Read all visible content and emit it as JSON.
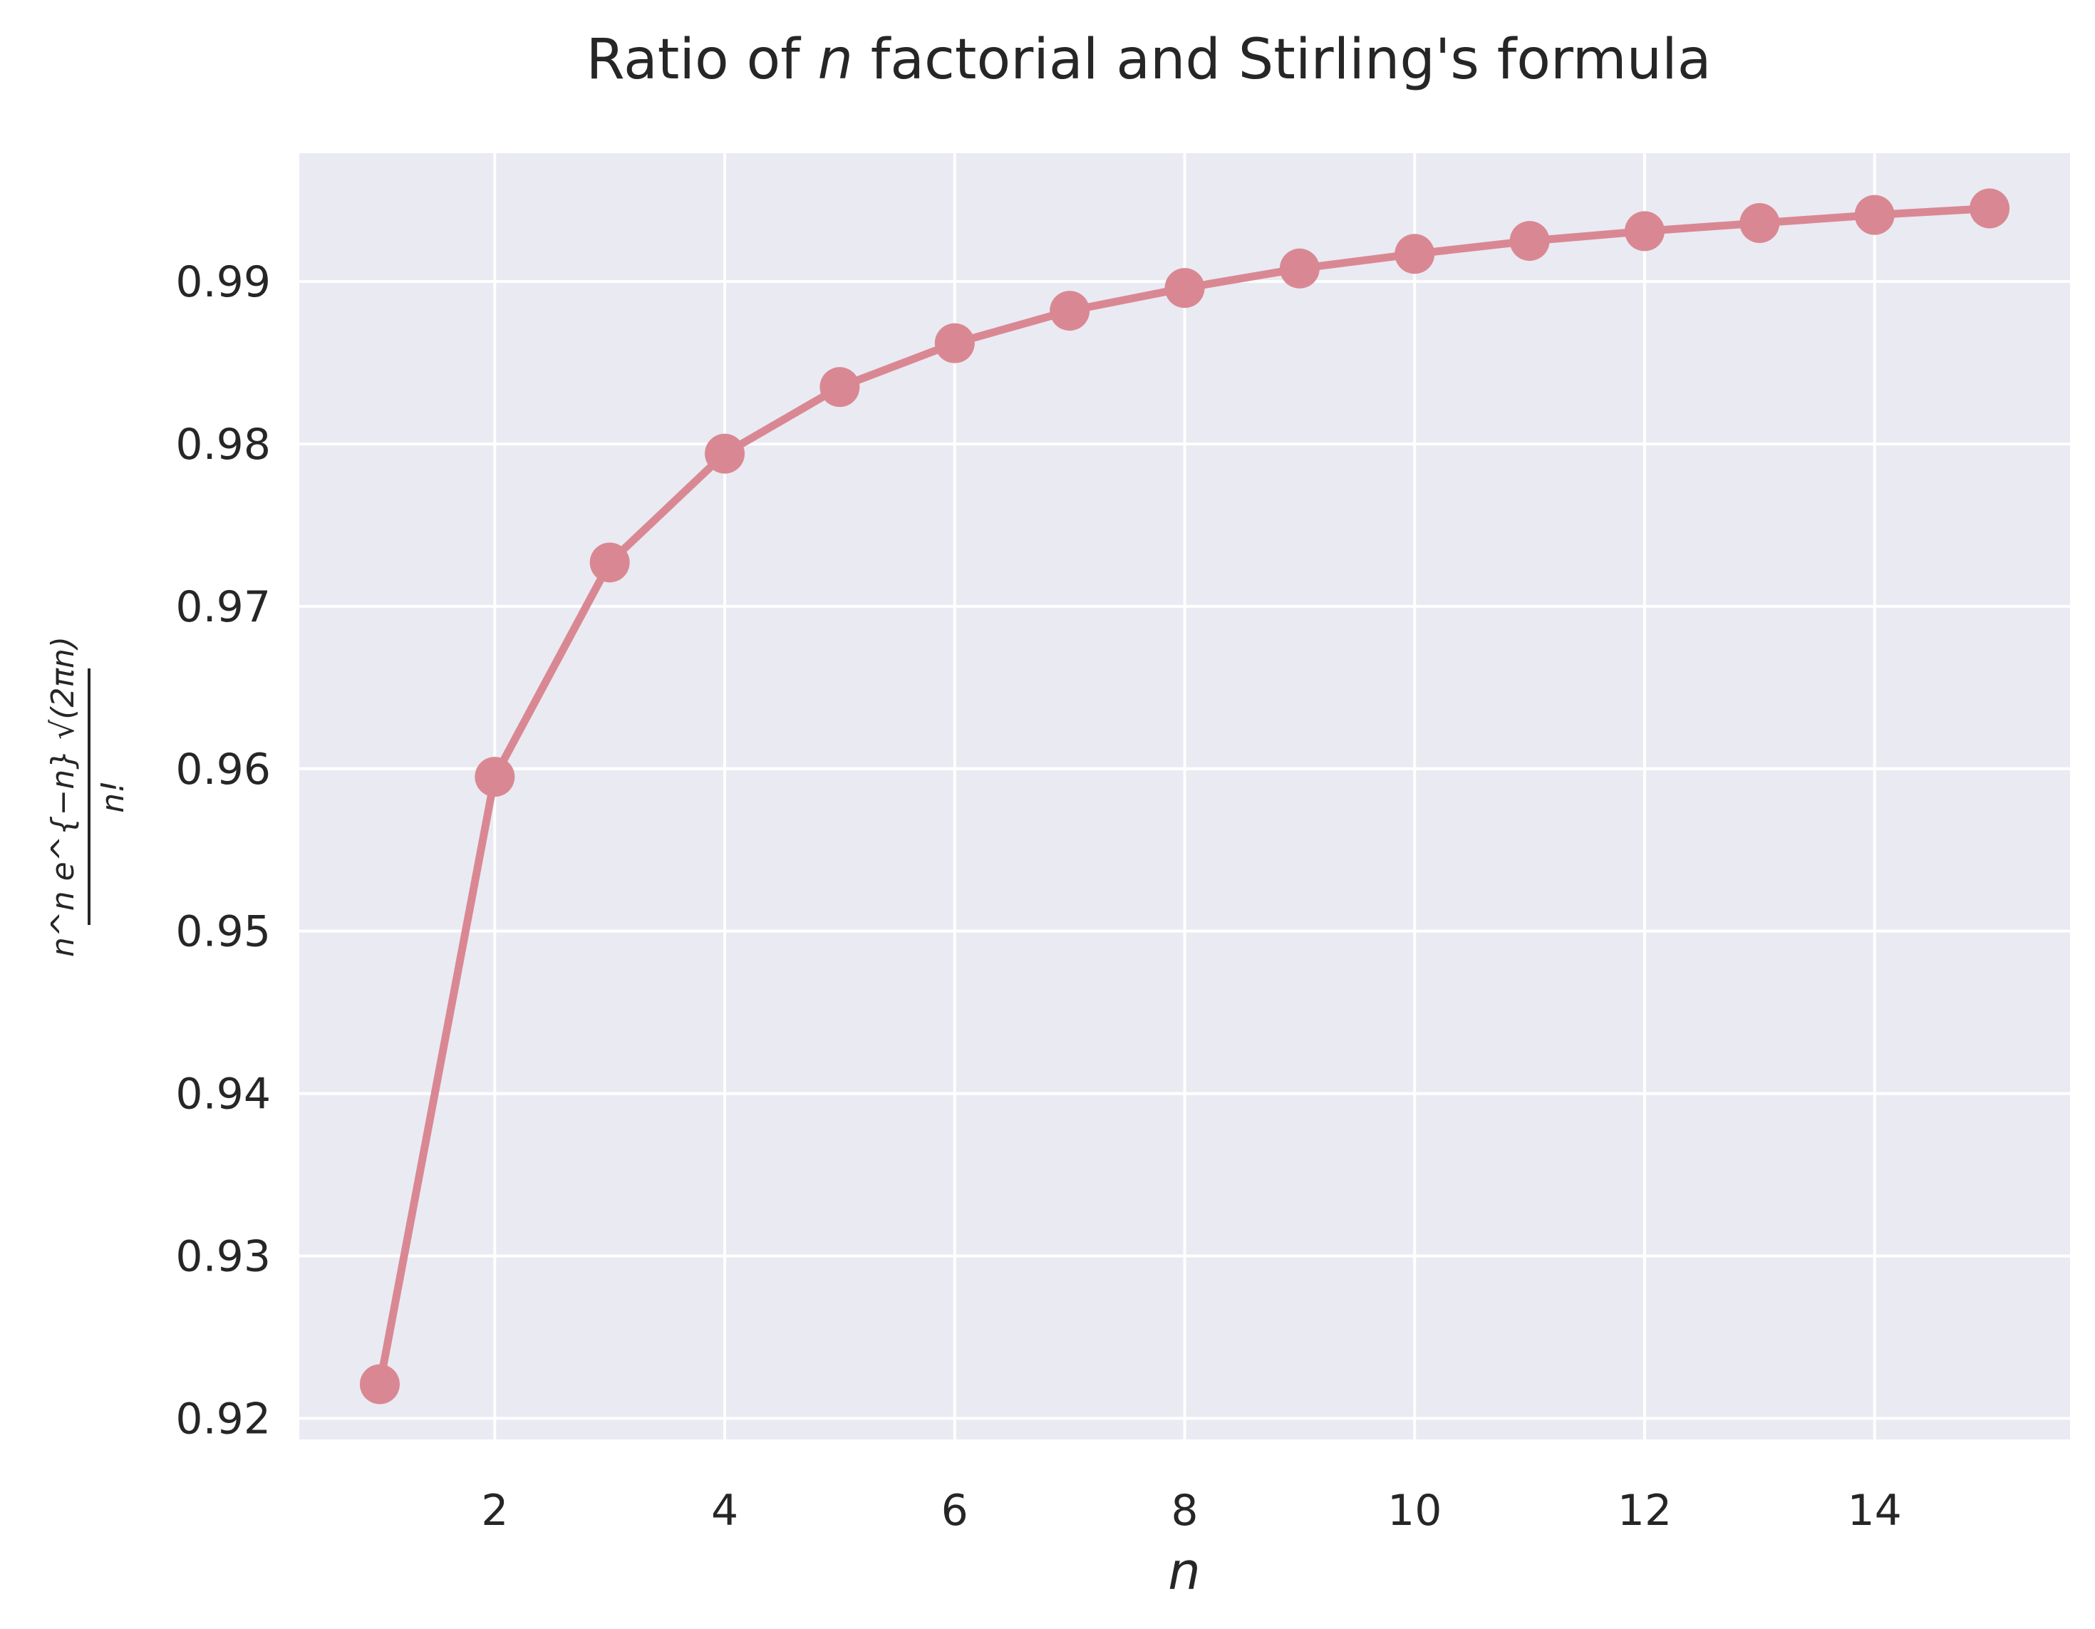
{
  "chart_data": {
    "type": "line",
    "title_prefix": "Ratio of ",
    "title_var": "n",
    "title_suffix": " factorial and Stirling's formula",
    "xlabel": "n",
    "ylabel_numerator": "n^n e^{−n} √(2πn)",
    "ylabel_denominator": "n!",
    "x": [
      1,
      2,
      3,
      4,
      5,
      6,
      7,
      8,
      9,
      10,
      11,
      12,
      13,
      14,
      15
    ],
    "values": [
      0.9221,
      0.9595,
      0.9727,
      0.9794,
      0.9835,
      0.9862,
      0.9882,
      0.9896,
      0.9908,
      0.9917,
      0.9925,
      0.9931,
      0.9936,
      0.9941,
      0.9945
    ],
    "xlim": [
      0.3,
      15.7
    ],
    "ylim": [
      0.9187,
      0.9979
    ],
    "xticks": [
      2,
      4,
      6,
      8,
      10,
      12,
      14
    ],
    "yticks": [
      0.92,
      0.93,
      0.94,
      0.95,
      0.96,
      0.97,
      0.98,
      0.99
    ],
    "ytick_labels": [
      "0.92",
      "0.93",
      "0.94",
      "0.95",
      "0.96",
      "0.97",
      "0.98",
      "0.99"
    ],
    "grid": true,
    "colors": {
      "line": "#d98893",
      "plot_bg": "#eaeaf2",
      "grid": "#ffffff",
      "text": "#262626"
    }
  }
}
